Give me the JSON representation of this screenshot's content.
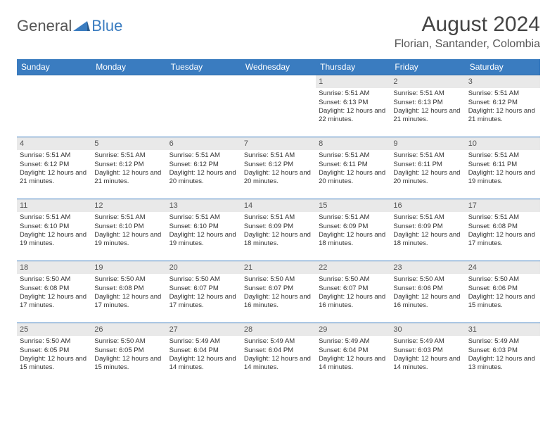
{
  "logo": {
    "part1": "General",
    "part2": "Blue"
  },
  "title": "August 2024",
  "location": "Florian, Santander, Colombia",
  "colors": {
    "header_bg": "#3a7cc0",
    "header_text": "#ffffff",
    "daynum_bg": "#e9e9e9",
    "row_border": "#3a7cc0",
    "text": "#333333",
    "page_bg": "#ffffff"
  },
  "daysOfWeek": [
    "Sunday",
    "Monday",
    "Tuesday",
    "Wednesday",
    "Thursday",
    "Friday",
    "Saturday"
  ],
  "cells": [
    {
      "blank": true
    },
    {
      "blank": true
    },
    {
      "blank": true
    },
    {
      "blank": true
    },
    {
      "n": "1",
      "sr": "5:51 AM",
      "ss": "6:13 PM",
      "dl": "12 hours and 22 minutes."
    },
    {
      "n": "2",
      "sr": "5:51 AM",
      "ss": "6:13 PM",
      "dl": "12 hours and 21 minutes."
    },
    {
      "n": "3",
      "sr": "5:51 AM",
      "ss": "6:12 PM",
      "dl": "12 hours and 21 minutes."
    },
    {
      "n": "4",
      "sr": "5:51 AM",
      "ss": "6:12 PM",
      "dl": "12 hours and 21 minutes."
    },
    {
      "n": "5",
      "sr": "5:51 AM",
      "ss": "6:12 PM",
      "dl": "12 hours and 21 minutes."
    },
    {
      "n": "6",
      "sr": "5:51 AM",
      "ss": "6:12 PM",
      "dl": "12 hours and 20 minutes."
    },
    {
      "n": "7",
      "sr": "5:51 AM",
      "ss": "6:12 PM",
      "dl": "12 hours and 20 minutes."
    },
    {
      "n": "8",
      "sr": "5:51 AM",
      "ss": "6:11 PM",
      "dl": "12 hours and 20 minutes."
    },
    {
      "n": "9",
      "sr": "5:51 AM",
      "ss": "6:11 PM",
      "dl": "12 hours and 20 minutes."
    },
    {
      "n": "10",
      "sr": "5:51 AM",
      "ss": "6:11 PM",
      "dl": "12 hours and 19 minutes."
    },
    {
      "n": "11",
      "sr": "5:51 AM",
      "ss": "6:10 PM",
      "dl": "12 hours and 19 minutes."
    },
    {
      "n": "12",
      "sr": "5:51 AM",
      "ss": "6:10 PM",
      "dl": "12 hours and 19 minutes."
    },
    {
      "n": "13",
      "sr": "5:51 AM",
      "ss": "6:10 PM",
      "dl": "12 hours and 19 minutes."
    },
    {
      "n": "14",
      "sr": "5:51 AM",
      "ss": "6:09 PM",
      "dl": "12 hours and 18 minutes."
    },
    {
      "n": "15",
      "sr": "5:51 AM",
      "ss": "6:09 PM",
      "dl": "12 hours and 18 minutes."
    },
    {
      "n": "16",
      "sr": "5:51 AM",
      "ss": "6:09 PM",
      "dl": "12 hours and 18 minutes."
    },
    {
      "n": "17",
      "sr": "5:51 AM",
      "ss": "6:08 PM",
      "dl": "12 hours and 17 minutes."
    },
    {
      "n": "18",
      "sr": "5:50 AM",
      "ss": "6:08 PM",
      "dl": "12 hours and 17 minutes."
    },
    {
      "n": "19",
      "sr": "5:50 AM",
      "ss": "6:08 PM",
      "dl": "12 hours and 17 minutes."
    },
    {
      "n": "20",
      "sr": "5:50 AM",
      "ss": "6:07 PM",
      "dl": "12 hours and 17 minutes."
    },
    {
      "n": "21",
      "sr": "5:50 AM",
      "ss": "6:07 PM",
      "dl": "12 hours and 16 minutes."
    },
    {
      "n": "22",
      "sr": "5:50 AM",
      "ss": "6:07 PM",
      "dl": "12 hours and 16 minutes."
    },
    {
      "n": "23",
      "sr": "5:50 AM",
      "ss": "6:06 PM",
      "dl": "12 hours and 16 minutes."
    },
    {
      "n": "24",
      "sr": "5:50 AM",
      "ss": "6:06 PM",
      "dl": "12 hours and 15 minutes."
    },
    {
      "n": "25",
      "sr": "5:50 AM",
      "ss": "6:05 PM",
      "dl": "12 hours and 15 minutes."
    },
    {
      "n": "26",
      "sr": "5:50 AM",
      "ss": "6:05 PM",
      "dl": "12 hours and 15 minutes."
    },
    {
      "n": "27",
      "sr": "5:49 AM",
      "ss": "6:04 PM",
      "dl": "12 hours and 14 minutes."
    },
    {
      "n": "28",
      "sr": "5:49 AM",
      "ss": "6:04 PM",
      "dl": "12 hours and 14 minutes."
    },
    {
      "n": "29",
      "sr": "5:49 AM",
      "ss": "6:04 PM",
      "dl": "12 hours and 14 minutes."
    },
    {
      "n": "30",
      "sr": "5:49 AM",
      "ss": "6:03 PM",
      "dl": "12 hours and 14 minutes."
    },
    {
      "n": "31",
      "sr": "5:49 AM",
      "ss": "6:03 PM",
      "dl": "12 hours and 13 minutes."
    }
  ],
  "labels": {
    "sunrise": "Sunrise: ",
    "sunset": "Sunset: ",
    "daylight": "Daylight: "
  }
}
